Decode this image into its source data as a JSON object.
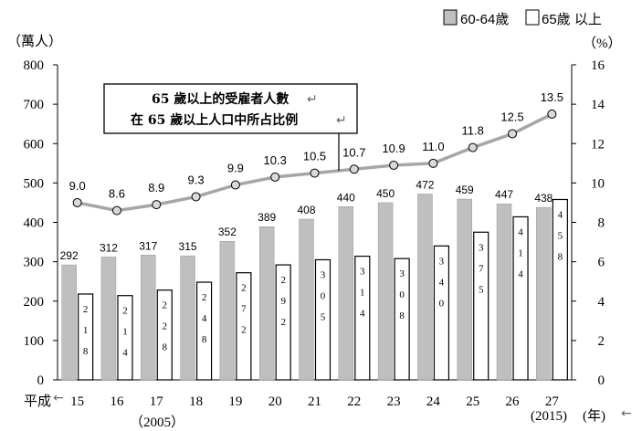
{
  "chart_data": {
    "type": "bar",
    "left_axis_unit": "（萬人）",
    "right_axis_unit": "（%）",
    "era_label": "平成",
    "year_unit": "(年)",
    "start_year_note": "（2005）",
    "end_year_note": "(2015)",
    "categories": [
      "15",
      "16",
      "17",
      "18",
      "19",
      "20",
      "21",
      "22",
      "23",
      "24",
      "25",
      "26",
      "27"
    ],
    "ylim": [
      0,
      800
    ],
    "y_ticks": [
      0,
      100,
      200,
      300,
      400,
      500,
      600,
      700,
      800
    ],
    "y2lim": [
      0,
      16
    ],
    "y2_ticks": [
      0,
      2,
      4,
      6,
      8,
      10,
      12,
      14,
      16
    ],
    "series": [
      {
        "name": "60-64歲",
        "color": "#bfbfbf",
        "values": [
          292,
          312,
          317,
          315,
          352,
          389,
          408,
          440,
          450,
          472,
          459,
          447,
          438
        ]
      },
      {
        "name": "65歲 以上",
        "color": "#ffffff",
        "values": [
          218,
          214,
          228,
          248,
          272,
          292,
          305,
          314,
          308,
          340,
          375,
          414,
          458
        ]
      }
    ],
    "line": {
      "color": "#a6a6a6",
      "values": [
        9.0,
        8.6,
        8.9,
        9.3,
        9.9,
        10.3,
        10.5,
        10.7,
        10.9,
        11.0,
        11.8,
        12.5,
        13.5
      ]
    },
    "annotation": {
      "line1": "65 歲以上的受雇者人數",
      "line2": "在 65 歲以上人口中所占比例",
      "return_mark": "↵"
    },
    "legend_position": "top-right",
    "grid": false
  }
}
